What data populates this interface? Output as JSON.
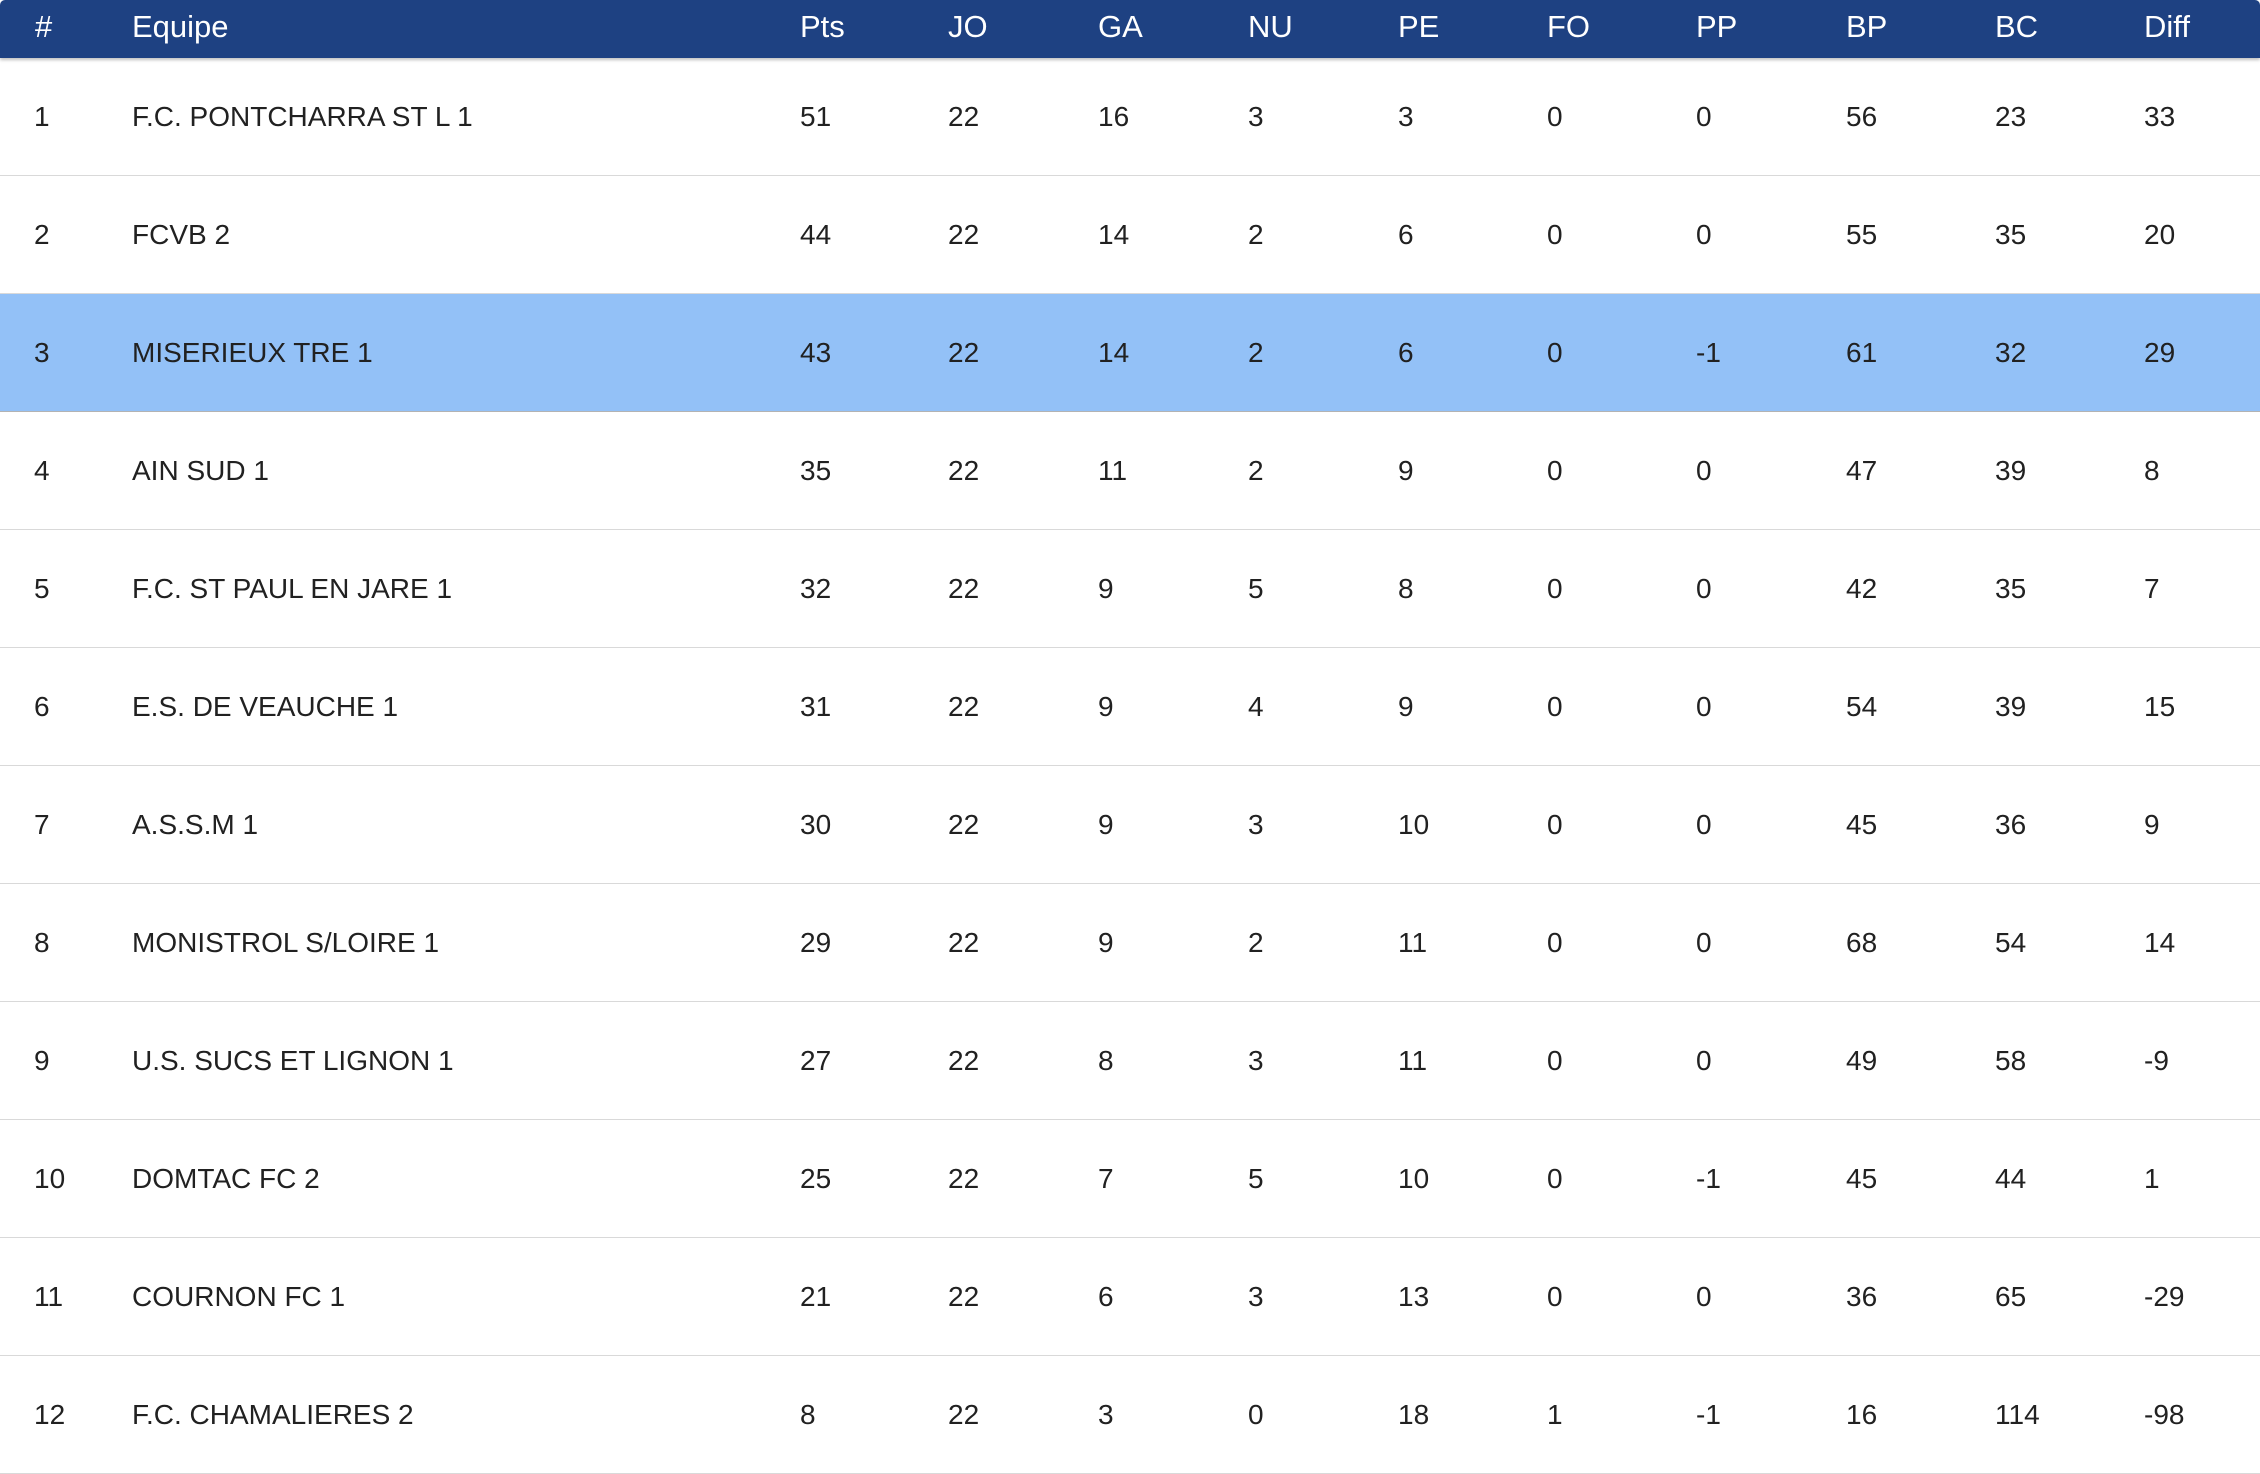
{
  "columns": {
    "rank": "#",
    "team": "Equipe",
    "pts": "Pts",
    "jo": "JO",
    "ga": "GA",
    "nu": "NU",
    "pe": "PE",
    "fo": "FO",
    "pp": "PP",
    "bp": "BP",
    "bc": "BC",
    "diff": "Diff"
  },
  "highlight_rank": "3",
  "colors": {
    "header_background": "#1e4182",
    "highlight_row": "#93c1f7"
  },
  "rows": [
    {
      "rank": "1",
      "team": "F.C. PONTCHARRA ST L 1",
      "pts": "51",
      "jo": "22",
      "ga": "16",
      "nu": "3",
      "pe": "3",
      "fo": "0",
      "pp": "0",
      "bp": "56",
      "bc": "23",
      "diff": "33"
    },
    {
      "rank": "2",
      "team": "FCVB 2",
      "pts": "44",
      "jo": "22",
      "ga": "14",
      "nu": "2",
      "pe": "6",
      "fo": "0",
      "pp": "0",
      "bp": "55",
      "bc": "35",
      "diff": "20"
    },
    {
      "rank": "3",
      "team": "MISERIEUX TRE 1",
      "pts": "43",
      "jo": "22",
      "ga": "14",
      "nu": "2",
      "pe": "6",
      "fo": "0",
      "pp": "-1",
      "bp": "61",
      "bc": "32",
      "diff": "29"
    },
    {
      "rank": "4",
      "team": "AIN SUD 1",
      "pts": "35",
      "jo": "22",
      "ga": "11",
      "nu": "2",
      "pe": "9",
      "fo": "0",
      "pp": "0",
      "bp": "47",
      "bc": "39",
      "diff": "8"
    },
    {
      "rank": "5",
      "team": "F.C. ST PAUL EN JARE 1",
      "pts": "32",
      "jo": "22",
      "ga": "9",
      "nu": "5",
      "pe": "8",
      "fo": "0",
      "pp": "0",
      "bp": "42",
      "bc": "35",
      "diff": "7"
    },
    {
      "rank": "6",
      "team": "E.S. DE VEAUCHE 1",
      "pts": "31",
      "jo": "22",
      "ga": "9",
      "nu": "4",
      "pe": "9",
      "fo": "0",
      "pp": "0",
      "bp": "54",
      "bc": "39",
      "diff": "15"
    },
    {
      "rank": "7",
      "team": "A.S.S.M 1",
      "pts": "30",
      "jo": "22",
      "ga": "9",
      "nu": "3",
      "pe": "10",
      "fo": "0",
      "pp": "0",
      "bp": "45",
      "bc": "36",
      "diff": "9"
    },
    {
      "rank": "8",
      "team": "MONISTROL S/LOIRE 1",
      "pts": "29",
      "jo": "22",
      "ga": "9",
      "nu": "2",
      "pe": "11",
      "fo": "0",
      "pp": "0",
      "bp": "68",
      "bc": "54",
      "diff": "14"
    },
    {
      "rank": "9",
      "team": "U.S. SUCS ET LIGNON 1",
      "pts": "27",
      "jo": "22",
      "ga": "8",
      "nu": "3",
      "pe": "11",
      "fo": "0",
      "pp": "0",
      "bp": "49",
      "bc": "58",
      "diff": "-9"
    },
    {
      "rank": "10",
      "team": "DOMTAC FC 2",
      "pts": "25",
      "jo": "22",
      "ga": "7",
      "nu": "5",
      "pe": "10",
      "fo": "0",
      "pp": "-1",
      "bp": "45",
      "bc": "44",
      "diff": "1"
    },
    {
      "rank": "11",
      "team": "COURNON FC 1",
      "pts": "21",
      "jo": "22",
      "ga": "6",
      "nu": "3",
      "pe": "13",
      "fo": "0",
      "pp": "0",
      "bp": "36",
      "bc": "65",
      "diff": "-29"
    },
    {
      "rank": "12",
      "team": "F.C. CHAMALIERES 2",
      "pts": "8",
      "jo": "22",
      "ga": "3",
      "nu": "0",
      "pe": "18",
      "fo": "1",
      "pp": "-1",
      "bp": "16",
      "bc": "114",
      "diff": "-98"
    }
  ]
}
